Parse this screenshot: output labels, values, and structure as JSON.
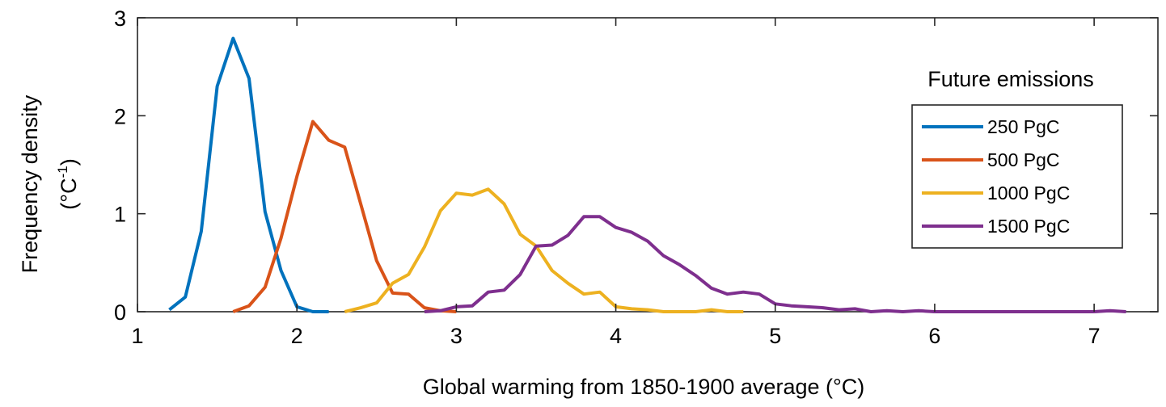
{
  "chart_data": {
    "type": "line",
    "title": "",
    "xlabel": "Global warming from 1850-1900 average (°C)",
    "ylabel_line1": "Frequency density",
    "ylabel_line2_base": "(°C",
    "ylabel_line2_sup": "-1",
    "ylabel_line2_end": ")",
    "xlim": [
      1,
      7.4
    ],
    "ylim": [
      0,
      3
    ],
    "xticks": [
      1,
      2,
      3,
      4,
      5,
      6,
      7
    ],
    "yticks": [
      0,
      1,
      2,
      3
    ],
    "grid": false,
    "legend_title": "Future emissions",
    "legend_position": "right",
    "series": [
      {
        "name": "250 PgC",
        "color": "#0072BD",
        "x": [
          1.2,
          1.3,
          1.4,
          1.5,
          1.6,
          1.7,
          1.8,
          1.9,
          2.0,
          2.1,
          2.2
        ],
        "y": [
          0.02,
          0.15,
          0.82,
          2.3,
          2.79,
          2.38,
          1.02,
          0.42,
          0.05,
          0.0,
          0.0
        ]
      },
      {
        "name": "500 PgC",
        "color": "#D95319",
        "x": [
          1.6,
          1.7,
          1.8,
          1.9,
          2.0,
          2.1,
          2.2,
          2.3,
          2.4,
          2.5,
          2.6,
          2.7,
          2.8,
          2.9,
          3.0
        ],
        "y": [
          0.0,
          0.06,
          0.25,
          0.75,
          1.38,
          1.94,
          1.75,
          1.68,
          1.1,
          0.52,
          0.19,
          0.18,
          0.04,
          0.01,
          0.0
        ]
      },
      {
        "name": "1000 PgC",
        "color": "#EDB120",
        "x": [
          2.3,
          2.4,
          2.5,
          2.6,
          2.7,
          2.8,
          2.9,
          3.0,
          3.1,
          3.2,
          3.3,
          3.4,
          3.5,
          3.6,
          3.7,
          3.8,
          3.9,
          4.0,
          4.1,
          4.2,
          4.3,
          4.4,
          4.5,
          4.6,
          4.7,
          4.8
        ],
        "y": [
          0.0,
          0.04,
          0.09,
          0.29,
          0.38,
          0.66,
          1.03,
          1.21,
          1.19,
          1.25,
          1.1,
          0.79,
          0.67,
          0.42,
          0.29,
          0.18,
          0.2,
          0.05,
          0.03,
          0.02,
          0.0,
          0.0,
          0.0,
          0.02,
          0.0,
          0.0
        ]
      },
      {
        "name": "1500 PgC",
        "color": "#7E2F8E",
        "x": [
          2.8,
          2.9,
          3.0,
          3.1,
          3.2,
          3.3,
          3.4,
          3.5,
          3.6,
          3.7,
          3.8,
          3.9,
          4.0,
          4.1,
          4.2,
          4.3,
          4.4,
          4.5,
          4.6,
          4.7,
          4.8,
          4.9,
          5.0,
          5.1,
          5.2,
          5.3,
          5.4,
          5.5,
          5.6,
          5.7,
          5.8,
          5.9,
          6.0,
          6.2,
          6.4,
          6.6,
          6.8,
          7.0,
          7.1,
          7.2
        ],
        "y": [
          0.0,
          0.01,
          0.05,
          0.06,
          0.2,
          0.22,
          0.38,
          0.67,
          0.68,
          0.78,
          0.97,
          0.97,
          0.86,
          0.81,
          0.72,
          0.57,
          0.48,
          0.37,
          0.24,
          0.18,
          0.2,
          0.18,
          0.08,
          0.06,
          0.05,
          0.04,
          0.02,
          0.03,
          0.0,
          0.01,
          0.0,
          0.01,
          0.0,
          0.0,
          0.0,
          0.0,
          0.0,
          0.0,
          0.01,
          0.0
        ]
      }
    ]
  }
}
